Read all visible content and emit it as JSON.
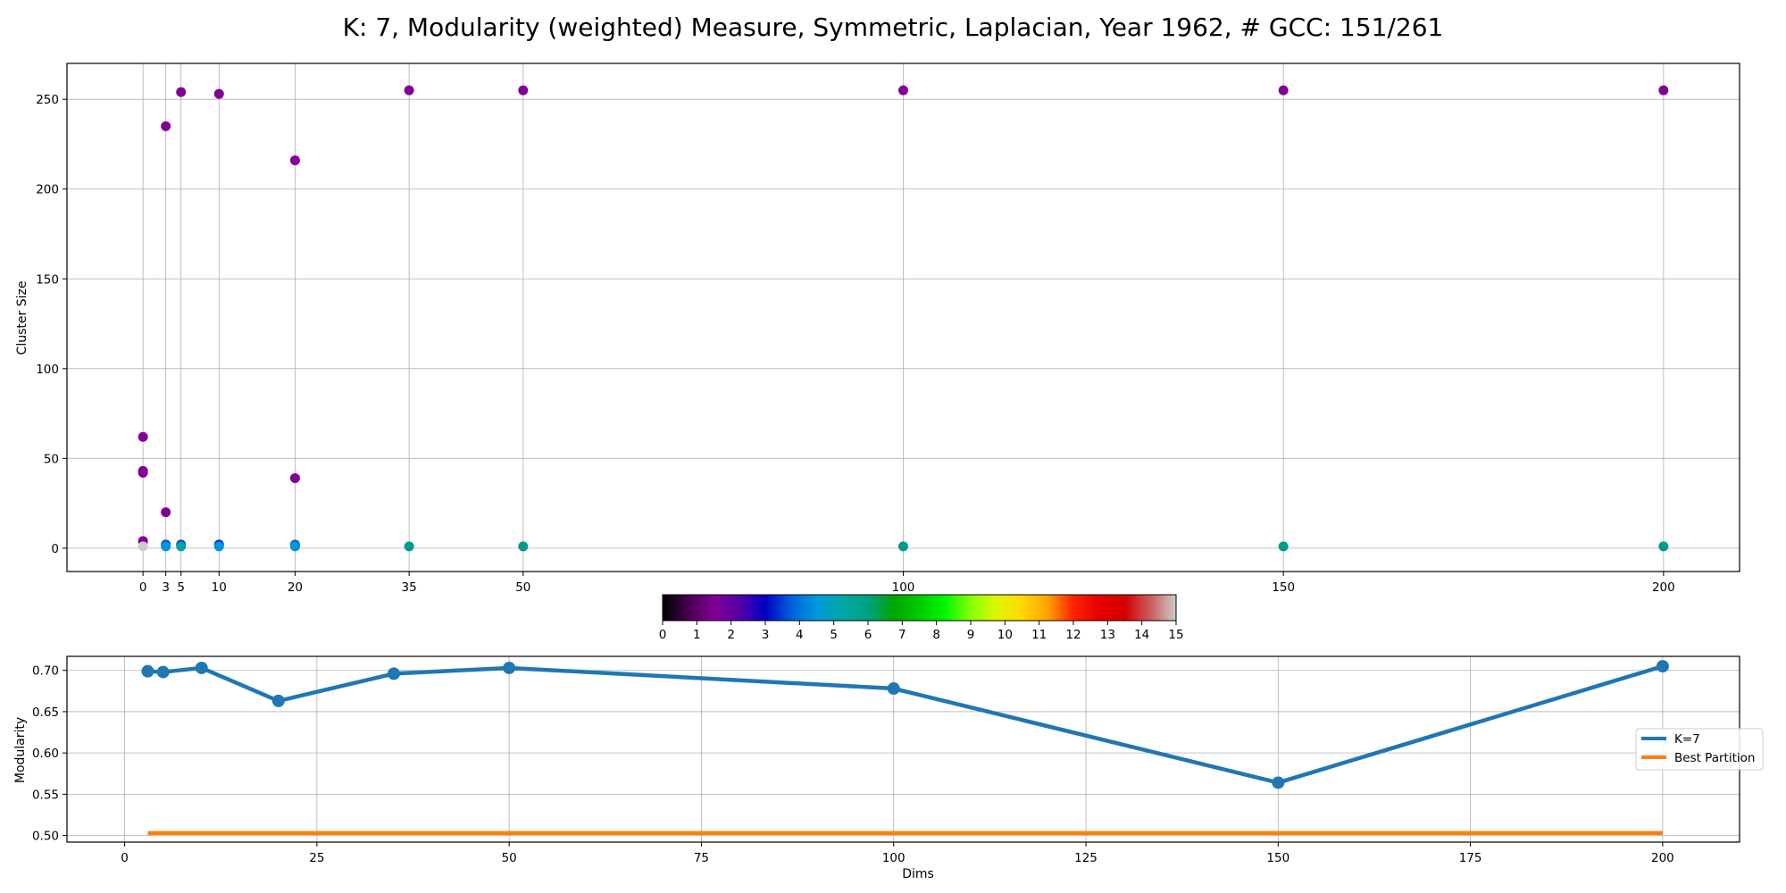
{
  "chart_data": [
    {
      "type": "scatter",
      "title": "K: 7, Modularity (weighted) Measure, Symmetric, Laplacian, Year 1962, # GCC: 151/261",
      "xlabel": "",
      "ylabel": "Cluster Size",
      "xlim": [
        -10,
        210
      ],
      "ylim": [
        -13,
        270
      ],
      "xticks": [
        0,
        3,
        5,
        10,
        20,
        35,
        50,
        100,
        150,
        200
      ],
      "yticks": [
        0,
        50,
        100,
        150,
        200,
        250
      ],
      "grid": true,
      "color_by": "cluster index (0-15)",
      "points": [
        {
          "x": 0,
          "y": 62,
          "c": 1
        },
        {
          "x": 0,
          "y": 43,
          "c": 1
        },
        {
          "x": 0,
          "y": 42,
          "c": 1
        },
        {
          "x": 0,
          "y": 4,
          "c": 1
        },
        {
          "x": 0,
          "y": 1,
          "c": 15
        },
        {
          "x": 3,
          "y": 235,
          "c": 1
        },
        {
          "x": 3,
          "y": 20,
          "c": 1
        },
        {
          "x": 3,
          "y": 2,
          "c": 2.5
        },
        {
          "x": 3,
          "y": 1,
          "c": 4
        },
        {
          "x": 5,
          "y": 254,
          "c": 1
        },
        {
          "x": 5,
          "y": 2,
          "c": 2.5
        },
        {
          "x": 5,
          "y": 1,
          "c": 5
        },
        {
          "x": 10,
          "y": 253,
          "c": 1
        },
        {
          "x": 10,
          "y": 2,
          "c": 2.3
        },
        {
          "x": 10,
          "y": 1,
          "c": 4
        },
        {
          "x": 20,
          "y": 216,
          "c": 1
        },
        {
          "x": 20,
          "y": 39,
          "c": 1
        },
        {
          "x": 20,
          "y": 2,
          "c": 2.8
        },
        {
          "x": 20,
          "y": 1,
          "c": 4
        },
        {
          "x": 35,
          "y": 255,
          "c": 1
        },
        {
          "x": 35,
          "y": 1,
          "c": 6
        },
        {
          "x": 50,
          "y": 255,
          "c": 1
        },
        {
          "x": 50,
          "y": 1,
          "c": 6
        },
        {
          "x": 100,
          "y": 255,
          "c": 1
        },
        {
          "x": 100,
          "y": 1,
          "c": 6
        },
        {
          "x": 150,
          "y": 255,
          "c": 1
        },
        {
          "x": 150,
          "y": 1,
          "c": 6
        },
        {
          "x": 200,
          "y": 255,
          "c": 1
        },
        {
          "x": 200,
          "y": 1,
          "c": 6
        }
      ]
    },
    {
      "type": "colorbar",
      "range": [
        0,
        15
      ],
      "ticks": [
        0,
        1,
        2,
        3,
        4,
        5,
        6,
        7,
        8,
        9,
        10,
        11,
        12,
        13,
        14,
        15
      ],
      "colormap": "nipy_spectral"
    },
    {
      "type": "line",
      "xlabel": "Dims",
      "ylabel": "Modularity",
      "xlim": [
        -7.5,
        210
      ],
      "ylim": [
        0.492,
        0.717
      ],
      "xticks": [
        0,
        25,
        50,
        75,
        100,
        125,
        150,
        175,
        200
      ],
      "yticks": [
        "0.50",
        "0.55",
        "0.60",
        "0.65",
        "0.70"
      ],
      "grid": true,
      "legend_position": "right",
      "series": [
        {
          "name": "K=7",
          "color": "#1f77b4",
          "markers": true,
          "x": [
            3,
            5,
            10,
            20,
            35,
            50,
            100,
            150,
            200
          ],
          "y": [
            0.699,
            0.698,
            0.703,
            0.663,
            0.696,
            0.703,
            0.678,
            0.564,
            0.705
          ]
        },
        {
          "name": "Best Partition",
          "color": "#ff7f0e",
          "markers": false,
          "x": [
            3,
            200
          ],
          "y": [
            0.503,
            0.503
          ]
        }
      ]
    }
  ]
}
